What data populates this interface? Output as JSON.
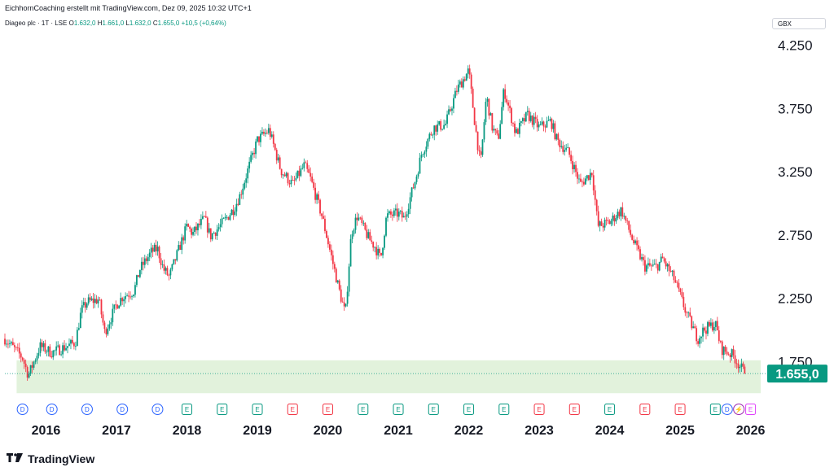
{
  "header": {
    "credit": "EichhornCoaching erstellt mit TradingView.com, Dez 09, 2025 10:32 UTC+1",
    "symbol": "Diageo plc · 1T · LSE",
    "open_label": "O",
    "open": "1.632,0",
    "high_label": "H",
    "high": "1.661,0",
    "low_label": "L",
    "low": "1.632,0",
    "close_label": "C",
    "close": "1.655,0",
    "change": "+10,5 (+0,64%)"
  },
  "currency": "GBX",
  "footer": {
    "brand": "TradingView",
    "logo_icon": "tradingview-logo-icon"
  },
  "colors": {
    "up": "#089981",
    "down": "#f23645",
    "zone": "#e2f2dc",
    "price_label_bg": "#089981",
    "axis_text": "#131722"
  },
  "chart_data": {
    "type": "candlestick",
    "title": "",
    "xlabel": "",
    "ylabel": "",
    "xlim": [
      "2015-06",
      "2026-03"
    ],
    "ylim": [
      1450,
      4350
    ],
    "y_ticks": [
      "4.250",
      "3.750",
      "3.250",
      "2.750",
      "2.250",
      "1.750"
    ],
    "y_tick_values": [
      4250,
      3750,
      3250,
      2750,
      2250,
      1750
    ],
    "x_ticks": [
      "2016",
      "2017",
      "2018",
      "2019",
      "2020",
      "2021",
      "2022",
      "2023",
      "2024",
      "2025",
      "2026"
    ],
    "last_price": 1655,
    "last_price_label": "1.655,0",
    "support_zone": [
      1500,
      1760
    ],
    "price_path": [
      [
        "2015-06",
        1930
      ],
      [
        "2015-09",
        1780
      ],
      [
        "2015-10",
        1640
      ],
      [
        "2015-12",
        1870
      ],
      [
        "2016-02",
        1820
      ],
      [
        "2016-06",
        1900
      ],
      [
        "2016-07",
        2150
      ],
      [
        "2016-08",
        2220
      ],
      [
        "2016-10",
        2240
      ],
      [
        "2016-11",
        1980
      ],
      [
        "2017-01",
        2200
      ],
      [
        "2017-02",
        2260
      ],
      [
        "2017-04",
        2310
      ],
      [
        "2017-05",
        2480
      ],
      [
        "2017-07",
        2620
      ],
      [
        "2017-08",
        2640
      ],
      [
        "2017-09",
        2480
      ],
      [
        "2017-10",
        2420
      ],
      [
        "2018-01",
        2820
      ],
      [
        "2018-02",
        2760
      ],
      [
        "2018-04",
        2880
      ],
      [
        "2018-05",
        2740
      ],
      [
        "2018-07",
        2840
      ],
      [
        "2018-09",
        2960
      ],
      [
        "2018-10",
        3060
      ],
      [
        "2019-01",
        3500
      ],
      [
        "2019-03",
        3580
      ],
      [
        "2019-05",
        3260
      ],
      [
        "2019-07",
        3150
      ],
      [
        "2019-09",
        3300
      ],
      [
        "2019-10",
        3200
      ],
      [
        "2019-12",
        2900
      ],
      [
        "2020-01",
        2700
      ],
      [
        "2020-03",
        2300
      ],
      [
        "2020-04",
        2120
      ],
      [
        "2020-05",
        2770
      ],
      [
        "2020-06",
        2900
      ],
      [
        "2020-08",
        2720
      ],
      [
        "2020-09",
        2660
      ],
      [
        "2020-10",
        2560
      ],
      [
        "2020-11",
        2900
      ],
      [
        "2021-01",
        2920
      ],
      [
        "2021-02",
        2880
      ],
      [
        "2021-04",
        3200
      ],
      [
        "2021-05",
        3400
      ],
      [
        "2021-07",
        3600
      ],
      [
        "2021-09",
        3620
      ],
      [
        "2021-11",
        3900
      ],
      [
        "2022-01",
        4050
      ],
      [
        "2022-02",
        3650
      ],
      [
        "2022-03",
        3300
      ],
      [
        "2022-04",
        3850
      ],
      [
        "2022-05",
        3600
      ],
      [
        "2022-06",
        3500
      ],
      [
        "2022-07",
        3900
      ],
      [
        "2022-09",
        3550
      ],
      [
        "2022-11",
        3700
      ],
      [
        "2023-01",
        3600
      ],
      [
        "2023-03",
        3650
      ],
      [
        "2023-04",
        3500
      ],
      [
        "2023-06",
        3400
      ],
      [
        "2023-08",
        3150
      ],
      [
        "2023-10",
        3250
      ],
      [
        "2023-11",
        2820
      ],
      [
        "2024-01",
        2850
      ],
      [
        "2024-03",
        2950
      ],
      [
        "2024-05",
        2700
      ],
      [
        "2024-07",
        2500
      ],
      [
        "2024-09",
        2500
      ],
      [
        "2024-10",
        2560
      ],
      [
        "2024-12",
        2400
      ],
      [
        "2025-02",
        2140
      ],
      [
        "2025-04",
        1930
      ],
      [
        "2025-05",
        2000
      ],
      [
        "2025-07",
        2050
      ],
      [
        "2025-08",
        1850
      ],
      [
        "2025-10",
        1800
      ],
      [
        "2025-12",
        1655
      ]
    ],
    "events": [
      {
        "type": "D",
        "date": "2015-09"
      },
      {
        "type": "D",
        "date": "2016-02"
      },
      {
        "type": "D",
        "date": "2016-08"
      },
      {
        "type": "D",
        "date": "2017-02"
      },
      {
        "type": "D",
        "date": "2017-08"
      },
      {
        "type": "E",
        "date": "2018-01"
      },
      {
        "type": "E",
        "date": "2018-07"
      },
      {
        "type": "E",
        "date": "2019-01"
      },
      {
        "type": "E",
        "date": "2019-07"
      },
      {
        "type": "E",
        "date": "2020-01"
      },
      {
        "type": "E",
        "date": "2020-07"
      },
      {
        "type": "E",
        "date": "2021-01"
      },
      {
        "type": "E",
        "date": "2021-07"
      },
      {
        "type": "E",
        "date": "2022-01"
      },
      {
        "type": "E",
        "date": "2022-07"
      },
      {
        "type": "E",
        "date": "2023-01"
      },
      {
        "type": "E",
        "date": "2023-07"
      },
      {
        "type": "E",
        "date": "2024-01"
      },
      {
        "type": "E",
        "date": "2024-07"
      },
      {
        "type": "E",
        "date": "2025-01"
      },
      {
        "type": "E",
        "date": "2025-07"
      },
      {
        "type": "D",
        "date": "2025-09"
      },
      {
        "type": "S",
        "date": "2025-11"
      },
      {
        "type": "E",
        "date": "2026-01"
      }
    ],
    "event_colors": {
      "D": "#2962ff",
      "E_up": "#089981",
      "E_down": "#f23645",
      "S": "#9c27b0",
      "E_future": "#e040fb"
    }
  }
}
